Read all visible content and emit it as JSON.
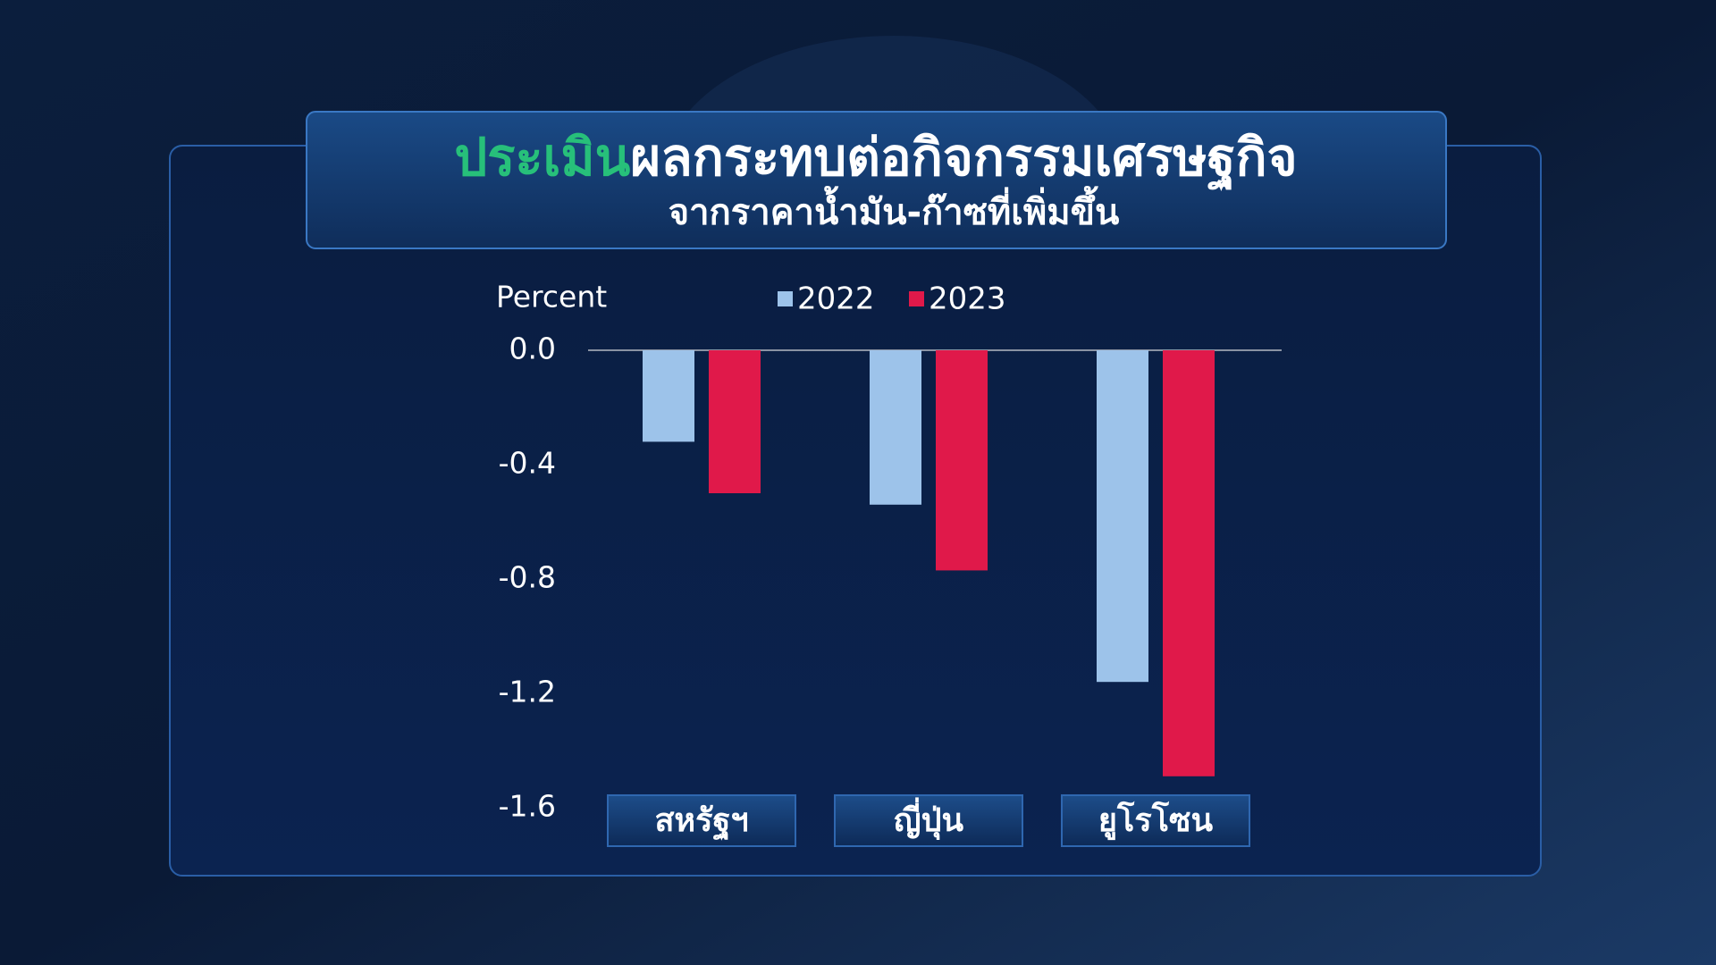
{
  "chart_data": {
    "type": "bar",
    "title": {
      "highlight": "ประเมิน",
      "text": "ผลกระทบต่อกิจกรรมเศรษฐกิจ"
    },
    "subtitle": "จากราคาน้ำมัน-ก๊าซที่เพิ่มขึ้น",
    "y_label": "Percent",
    "categories": [
      "สหรัฐฯ",
      "ญี่ปุ่น",
      "ยูโรโซน"
    ],
    "series": [
      {
        "name": "2022",
        "color": "#9dc3ea",
        "values": [
          -0.32,
          -0.54,
          -1.16
        ]
      },
      {
        "name": "2023",
        "color": "#e0194a",
        "values": [
          -0.5,
          -0.77,
          -1.49
        ]
      }
    ],
    "ylim": [
      -1.6,
      0
    ],
    "yticks": [
      {
        "value": 0,
        "label": "0.0"
      },
      -0.4,
      -0.8,
      -1.2,
      -1.6
    ],
    "grid": false
  }
}
